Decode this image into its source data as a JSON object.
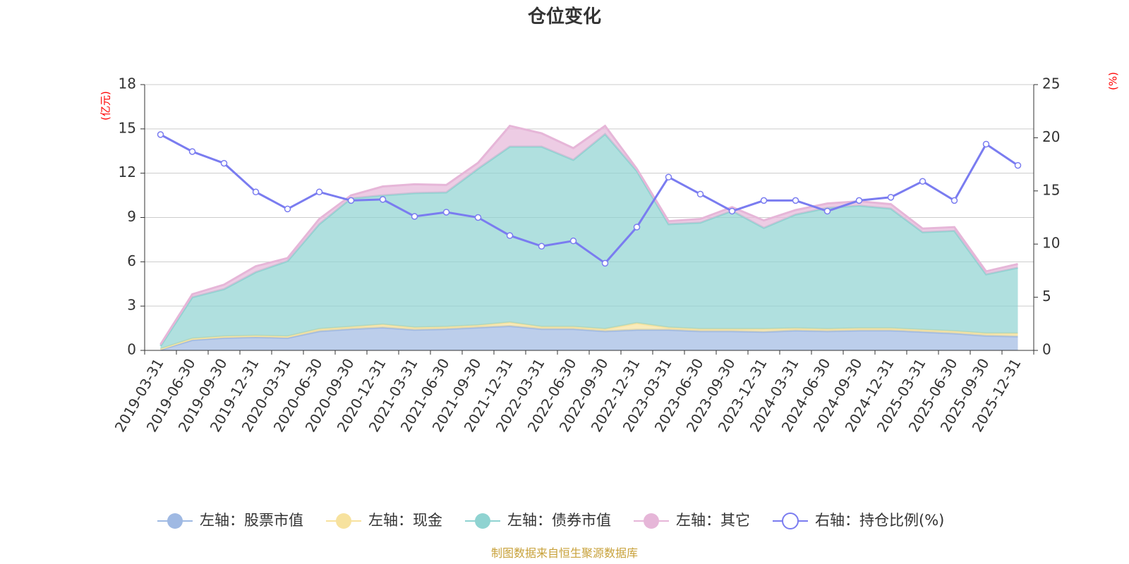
{
  "chart_data": {
    "type": "area",
    "title": "仓位变化",
    "left_axis": {
      "unit": "(亿元)",
      "ylim": [
        0,
        18
      ],
      "ticks": [
        0,
        3,
        6,
        9,
        12,
        15,
        18
      ]
    },
    "right_axis": {
      "unit": "(%)",
      "ylim": [
        0,
        25
      ],
      "ticks": [
        0,
        5,
        10,
        15,
        20,
        25
      ]
    },
    "categories": [
      "2019-03-31",
      "2019-06-30",
      "2019-09-30",
      "2019-12-31",
      "2020-03-31",
      "2020-06-30",
      "2020-09-30",
      "2020-12-31",
      "2021-03-31",
      "2021-06-30",
      "2021-09-30",
      "2021-12-31",
      "2022-03-31",
      "2022-06-30",
      "2022-09-30",
      "2022-12-31",
      "2023-03-31",
      "2023-06-30",
      "2023-09-30",
      "2023-12-31",
      "2024-03-31",
      "2024-06-30",
      "2024-09-30",
      "2024-12-31",
      "2025-03-31",
      "2025-06-30",
      "2025-09-30",
      "2025-12-31"
    ],
    "series": [
      {
        "name": "左轴：股票市值",
        "axis": "left",
        "stack": true,
        "color": "#9fb9e3",
        "values": [
          0.05,
          0.7,
          0.85,
          0.9,
          0.85,
          1.3,
          1.45,
          1.55,
          1.4,
          1.45,
          1.55,
          1.65,
          1.45,
          1.45,
          1.3,
          1.4,
          1.4,
          1.3,
          1.3,
          1.25,
          1.35,
          1.3,
          1.35,
          1.35,
          1.25,
          1.15,
          1.0,
          0.95
        ]
      },
      {
        "name": "左轴：现金",
        "axis": "left",
        "stack": true,
        "color": "#f7e29e",
        "values": [
          0.05,
          0.1,
          0.1,
          0.1,
          0.1,
          0.15,
          0.15,
          0.2,
          0.15,
          0.15,
          0.15,
          0.25,
          0.15,
          0.15,
          0.15,
          0.45,
          0.15,
          0.15,
          0.15,
          0.2,
          0.15,
          0.15,
          0.15,
          0.15,
          0.15,
          0.15,
          0.15,
          0.2
        ]
      },
      {
        "name": "左轴：债券市值",
        "axis": "left",
        "stack": true,
        "color": "#8fd3d1",
        "values": [
          0.2,
          2.8,
          3.2,
          4.3,
          5.1,
          7.1,
          8.7,
          8.75,
          9.1,
          9.1,
          10.6,
          11.9,
          12.2,
          11.3,
          13.2,
          10.3,
          7.0,
          7.2,
          8.0,
          6.85,
          7.7,
          8.2,
          8.3,
          8.1,
          6.6,
          6.8,
          4.0,
          4.45
        ]
      },
      {
        "name": "左轴：其它",
        "axis": "left",
        "stack": true,
        "color": "#e6b6d8",
        "values": [
          0.1,
          0.2,
          0.3,
          0.4,
          0.2,
          0.35,
          0.2,
          0.6,
          0.6,
          0.5,
          0.4,
          1.4,
          0.9,
          0.8,
          0.55,
          0.15,
          0.2,
          0.25,
          0.25,
          0.5,
          0.3,
          0.3,
          0.3,
          0.3,
          0.25,
          0.25,
          0.2,
          0.25
        ]
      },
      {
        "name": "右轴：持仓比例(%)",
        "axis": "right",
        "type": "line",
        "color": "#7a7cf0",
        "values": [
          20.3,
          18.7,
          17.6,
          14.9,
          13.3,
          14.9,
          14.1,
          14.2,
          12.6,
          13.0,
          12.5,
          10.8,
          9.8,
          10.3,
          8.2,
          11.6,
          16.3,
          14.7,
          13.1,
          14.1,
          14.1,
          13.1,
          14.1,
          14.4,
          15.9,
          14.1,
          19.4,
          17.4
        ]
      }
    ],
    "legend_position": "bottom",
    "source_note": "制图数据来自恒生聚源数据库"
  }
}
